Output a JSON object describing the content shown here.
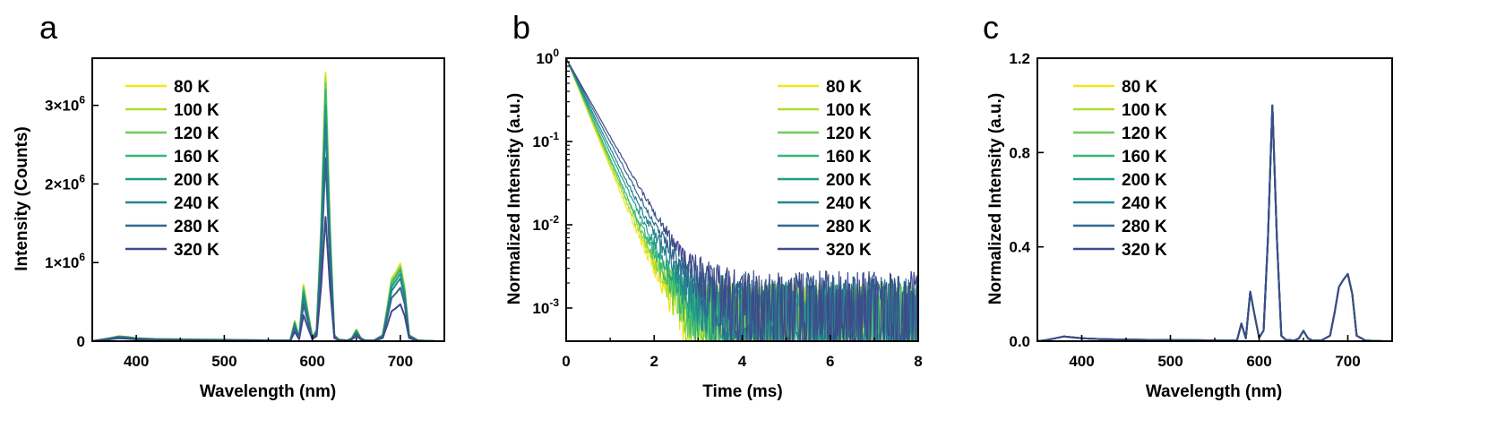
{
  "palette": [
    "#f2e51d",
    "#b2dc2c",
    "#6ccd5a",
    "#35b779",
    "#1f9e89",
    "#26838f",
    "#31688e",
    "#3e4a89"
  ],
  "legend_labels": [
    "80 K",
    "100 K",
    "120 K",
    "160 K",
    "200 K",
    "240 K",
    "280 K",
    "320 K"
  ],
  "chart_data": [
    {
      "panel": "a",
      "type": "line",
      "xlabel": "Wavelength (nm)",
      "ylabel": "Intensity (Counts)",
      "xlim": [
        350,
        750
      ],
      "ylim": [
        0,
        3600000
      ],
      "x_ticks": [
        400,
        500,
        600,
        700
      ],
      "y_ticks": [
        0,
        1000000,
        2000000,
        3000000
      ],
      "y_tick_labels": [
        "0",
        "1×10^6",
        "2×10^6",
        "3×10^6"
      ],
      "legend_position": "top-left",
      "x": [
        350,
        360,
        370,
        380,
        390,
        400,
        420,
        450,
        500,
        530,
        560,
        575,
        580,
        585,
        590,
        595,
        600,
        605,
        610,
        615,
        620,
        625,
        630,
        640,
        645,
        650,
        655,
        660,
        670,
        680,
        685,
        690,
        695,
        700,
        705,
        710,
        720,
        740,
        750
      ],
      "series": [
        {
          "name": "80 K",
          "values": [
            0,
            20000,
            40000,
            65000,
            55000,
            40000,
            30000,
            25000,
            20000,
            15000,
            10000,
            10000,
            260000,
            40000,
            720000,
            380000,
            50000,
            150000,
            1500000,
            3420000,
            1500000,
            80000,
            20000,
            10000,
            40000,
            150000,
            40000,
            10000,
            10000,
            80000,
            420000,
            800000,
            880000,
            990000,
            680000,
            80000,
            10000,
            0,
            0
          ]
        },
        {
          "name": "100 K",
          "values": [
            0,
            20000,
            40000,
            63000,
            53000,
            39000,
            29000,
            24000,
            19000,
            14000,
            10000,
            10000,
            250000,
            40000,
            700000,
            370000,
            50000,
            145000,
            1470000,
            3370000,
            1470000,
            78000,
            20000,
            10000,
            40000,
            145000,
            40000,
            10000,
            10000,
            78000,
            410000,
            780000,
            860000,
            960000,
            660000,
            78000,
            10000,
            0,
            0
          ]
        },
        {
          "name": "120 K",
          "values": [
            0,
            20000,
            39000,
            62000,
            52000,
            38000,
            28000,
            23000,
            18000,
            14000,
            10000,
            10000,
            245000,
            39000,
            680000,
            360000,
            48000,
            140000,
            1430000,
            3290000,
            1430000,
            76000,
            19000,
            10000,
            39000,
            140000,
            39000,
            10000,
            10000,
            76000,
            400000,
            760000,
            840000,
            940000,
            640000,
            76000,
            10000,
            0,
            0
          ]
        },
        {
          "name": "160 K",
          "values": [
            0,
            19000,
            38000,
            60000,
            50000,
            37000,
            27000,
            22000,
            17000,
            13000,
            10000,
            10000,
            235000,
            38000,
            650000,
            340000,
            46000,
            135000,
            1390000,
            3200000,
            1390000,
            74000,
            19000,
            10000,
            38000,
            135000,
            38000,
            10000,
            10000,
            74000,
            385000,
            730000,
            820000,
            910000,
            620000,
            74000,
            10000,
            0,
            0
          ]
        },
        {
          "name": "200 K",
          "values": [
            0,
            18000,
            36000,
            57000,
            48000,
            35000,
            26000,
            21000,
            16000,
            12000,
            9000,
            9000,
            220000,
            36000,
            610000,
            320000,
            44000,
            125000,
            1300000,
            3000000,
            1300000,
            70000,
            18000,
            9000,
            36000,
            125000,
            36000,
            9000,
            9000,
            70000,
            365000,
            690000,
            770000,
            860000,
            590000,
            70000,
            9000,
            0,
            0
          ]
        },
        {
          "name": "240 K",
          "values": [
            0,
            17000,
            34000,
            54000,
            45000,
            33000,
            24000,
            20000,
            15000,
            11000,
            8000,
            8000,
            205000,
            34000,
            560000,
            295000,
            40000,
            115000,
            1210000,
            2780000,
            1210000,
            65000,
            17000,
            8000,
            34000,
            115000,
            34000,
            8000,
            8000,
            65000,
            340000,
            640000,
            720000,
            800000,
            550000,
            65000,
            8000,
            0,
            0
          ]
        },
        {
          "name": "280 K",
          "values": [
            0,
            15000,
            30000,
            48000,
            40000,
            29000,
            21000,
            17000,
            13000,
            10000,
            7000,
            7000,
            170000,
            30000,
            470000,
            250000,
            34000,
            95000,
            1010000,
            2330000,
            1010000,
            55000,
            15000,
            7000,
            30000,
            95000,
            30000,
            7000,
            7000,
            55000,
            290000,
            550000,
            610000,
            680000,
            470000,
            55000,
            7000,
            0,
            0
          ]
        },
        {
          "name": "320 K",
          "values": [
            0,
            12000,
            24000,
            38000,
            32000,
            23000,
            17000,
            14000,
            10000,
            8000,
            6000,
            6000,
            120000,
            24000,
            330000,
            175000,
            26000,
            65000,
            700000,
            1580000,
            700000,
            40000,
            12000,
            6000,
            24000,
            65000,
            24000,
            6000,
            6000,
            40000,
            200000,
            380000,
            420000,
            470000,
            320000,
            40000,
            6000,
            0,
            0
          ]
        }
      ]
    },
    {
      "panel": "b",
      "type": "line",
      "xlabel": "Time (ms)",
      "ylabel": "Normalized Intensity (a.u.)",
      "xlim": [
        0,
        8
      ],
      "ylim": [
        0.0004,
        1
      ],
      "y_scale": "log",
      "x_ticks": [
        0,
        2,
        4,
        6,
        8
      ],
      "y_ticks": [
        0.001,
        0.01,
        0.1,
        1
      ],
      "y_tick_labels": [
        "10^-3",
        "10^-2",
        "10^-1",
        "10^0"
      ],
      "legend_position": "top-right",
      "decay_time_constant_ms": [
        0.33,
        0.34,
        0.35,
        0.36,
        0.38,
        0.4,
        0.43,
        0.46
      ],
      "noise_floor": [
        0.0005,
        0.0005,
        0.0005,
        0.0005,
        0.0005,
        0.0006,
        0.0006,
        0.0007
      ]
    },
    {
      "panel": "c",
      "type": "line",
      "xlabel": "Wavelength (nm)",
      "ylabel": "Normalized Intensity (a.u.)",
      "xlim": [
        350,
        750
      ],
      "ylim": [
        0,
        1.2
      ],
      "x_ticks": [
        400,
        500,
        600,
        700
      ],
      "y_ticks": [
        0.0,
        0.4,
        0.8,
        1.2
      ],
      "y_tick_labels": [
        "0.0",
        "0.4",
        "0.8",
        "1.2"
      ],
      "legend_position": "top-left",
      "x": [
        350,
        360,
        370,
        380,
        390,
        400,
        420,
        450,
        500,
        530,
        560,
        575,
        580,
        585,
        590,
        595,
        600,
        605,
        610,
        615,
        620,
        625,
        630,
        640,
        645,
        650,
        655,
        660,
        670,
        680,
        685,
        690,
        695,
        700,
        705,
        710,
        720,
        740,
        750
      ],
      "series": [
        {
          "name": "80 K",
          "values": [
            0,
            0.005,
            0.012,
            0.02,
            0.016,
            0.012,
            0.009,
            0.007,
            0.005,
            0.004,
            0.003,
            0.003,
            0.075,
            0.012,
            0.21,
            0.11,
            0.015,
            0.045,
            0.44,
            1.0,
            0.44,
            0.023,
            0.006,
            0.003,
            0.012,
            0.044,
            0.012,
            0.003,
            0.003,
            0.023,
            0.12,
            0.23,
            0.26,
            0.285,
            0.2,
            0.023,
            0.003,
            0,
            0
          ]
        },
        {
          "name": "100 K",
          "values": [
            0,
            0.005,
            0.012,
            0.02,
            0.016,
            0.012,
            0.009,
            0.007,
            0.005,
            0.004,
            0.003,
            0.003,
            0.075,
            0.012,
            0.21,
            0.11,
            0.015,
            0.045,
            0.44,
            1.0,
            0.44,
            0.023,
            0.006,
            0.003,
            0.012,
            0.044,
            0.012,
            0.003,
            0.003,
            0.023,
            0.12,
            0.23,
            0.26,
            0.285,
            0.2,
            0.023,
            0.003,
            0,
            0
          ]
        },
        {
          "name": "120 K",
          "values": [
            0,
            0.005,
            0.012,
            0.02,
            0.016,
            0.012,
            0.009,
            0.007,
            0.005,
            0.004,
            0.003,
            0.003,
            0.075,
            0.012,
            0.21,
            0.11,
            0.015,
            0.045,
            0.44,
            1.0,
            0.44,
            0.023,
            0.006,
            0.003,
            0.012,
            0.044,
            0.012,
            0.003,
            0.003,
            0.023,
            0.12,
            0.23,
            0.26,
            0.285,
            0.2,
            0.023,
            0.003,
            0,
            0
          ]
        },
        {
          "name": "160 K",
          "values": [
            0,
            0.005,
            0.012,
            0.02,
            0.016,
            0.012,
            0.009,
            0.007,
            0.005,
            0.004,
            0.003,
            0.003,
            0.075,
            0.012,
            0.21,
            0.11,
            0.015,
            0.045,
            0.44,
            1.0,
            0.44,
            0.023,
            0.006,
            0.003,
            0.012,
            0.044,
            0.012,
            0.003,
            0.003,
            0.023,
            0.12,
            0.23,
            0.26,
            0.285,
            0.2,
            0.023,
            0.003,
            0,
            0
          ]
        },
        {
          "name": "200 K",
          "values": [
            0,
            0.005,
            0.012,
            0.02,
            0.016,
            0.012,
            0.009,
            0.007,
            0.005,
            0.004,
            0.003,
            0.003,
            0.075,
            0.012,
            0.21,
            0.11,
            0.015,
            0.045,
            0.44,
            1.0,
            0.44,
            0.023,
            0.006,
            0.003,
            0.012,
            0.044,
            0.012,
            0.003,
            0.003,
            0.023,
            0.12,
            0.23,
            0.26,
            0.285,
            0.2,
            0.023,
            0.003,
            0,
            0
          ]
        },
        {
          "name": "240 K",
          "values": [
            0,
            0.005,
            0.012,
            0.02,
            0.016,
            0.012,
            0.009,
            0.007,
            0.005,
            0.004,
            0.003,
            0.003,
            0.075,
            0.012,
            0.21,
            0.11,
            0.015,
            0.045,
            0.44,
            1.0,
            0.44,
            0.023,
            0.006,
            0.003,
            0.012,
            0.044,
            0.012,
            0.003,
            0.003,
            0.023,
            0.12,
            0.23,
            0.26,
            0.285,
            0.2,
            0.023,
            0.003,
            0,
            0
          ]
        },
        {
          "name": "280 K",
          "values": [
            0,
            0.005,
            0.012,
            0.02,
            0.016,
            0.012,
            0.009,
            0.007,
            0.005,
            0.004,
            0.003,
            0.003,
            0.075,
            0.012,
            0.21,
            0.11,
            0.015,
            0.045,
            0.44,
            1.0,
            0.44,
            0.023,
            0.006,
            0.003,
            0.012,
            0.044,
            0.012,
            0.003,
            0.003,
            0.023,
            0.12,
            0.23,
            0.26,
            0.285,
            0.2,
            0.023,
            0.003,
            0,
            0
          ]
        },
        {
          "name": "320 K",
          "values": [
            0,
            0.005,
            0.012,
            0.02,
            0.016,
            0.012,
            0.009,
            0.007,
            0.005,
            0.004,
            0.003,
            0.003,
            0.075,
            0.012,
            0.21,
            0.11,
            0.015,
            0.045,
            0.44,
            1.0,
            0.44,
            0.023,
            0.006,
            0.003,
            0.012,
            0.044,
            0.012,
            0.003,
            0.003,
            0.023,
            0.12,
            0.23,
            0.26,
            0.285,
            0.2,
            0.023,
            0.003,
            0,
            0
          ]
        }
      ]
    }
  ]
}
